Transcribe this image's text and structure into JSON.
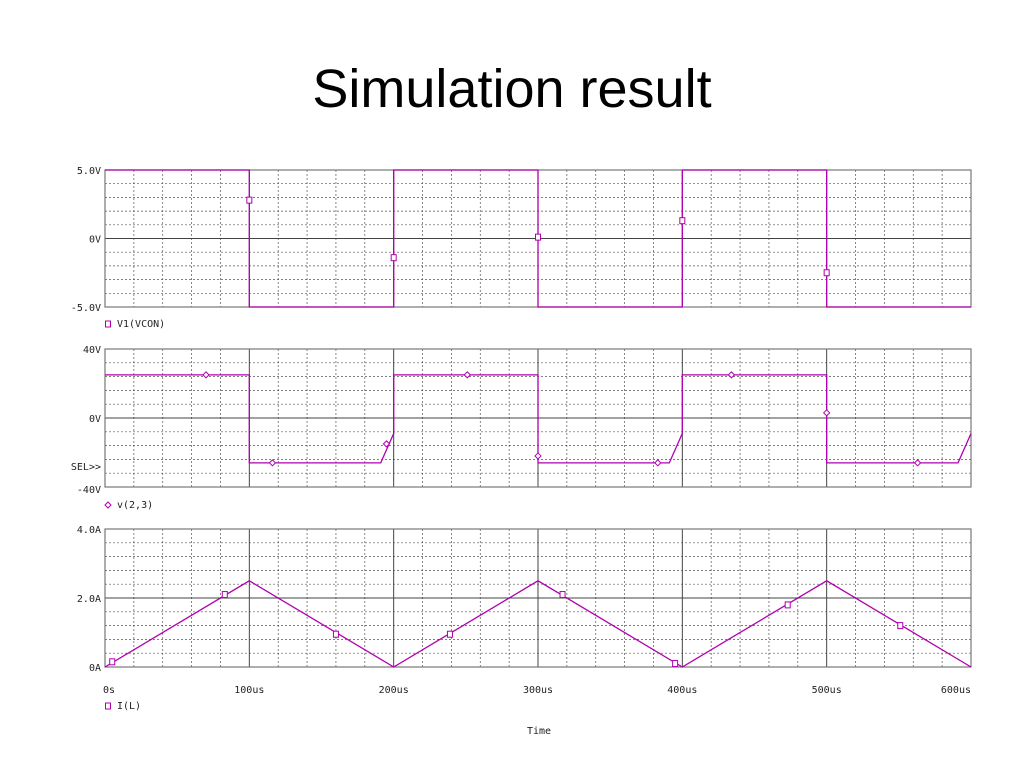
{
  "slide": {
    "title": "Simulation result"
  },
  "colors": {
    "trace": "#b000b0",
    "grid": "#555555",
    "axis": "#777777"
  },
  "chart_data": [
    {
      "type": "line",
      "ylim": [
        -5,
        5
      ],
      "yticks": [
        "5.0V",
        "0V",
        "-5.0V"
      ],
      "legend": "V1(VCON)",
      "legend_marker": "square",
      "series": [
        {
          "name": "V1(VCON)",
          "x": [
            0,
            100,
            100,
            200,
            200,
            300,
            300,
            400,
            400,
            500,
            500,
            600
          ],
          "y": [
            5,
            5,
            -5,
            -5,
            5,
            5,
            -5,
            -5,
            5,
            5,
            -5,
            -5
          ]
        }
      ],
      "markers": [
        [
          100,
          2.8
        ],
        [
          200,
          -1.4
        ],
        [
          300,
          0.1
        ],
        [
          400,
          1.3
        ],
        [
          500,
          -2.5
        ]
      ]
    },
    {
      "type": "line",
      "ylim": [
        -40,
        40
      ],
      "yticks": [
        "40V",
        "0V",
        "-40V"
      ],
      "selector": "SEL>>",
      "legend": "v(2,3)",
      "legend_marker": "diamond",
      "series": [
        {
          "name": "v(2,3)",
          "x": [
            0,
            100,
            100,
            191,
            200,
            200,
            300,
            300,
            391,
            400,
            400,
            500,
            500,
            591,
            600
          ],
          "y": [
            25,
            25,
            -26,
            -26,
            -9,
            25,
            25,
            -26,
            -26,
            -9,
            25,
            25,
            -26,
            -26,
            -9
          ]
        }
      ],
      "markers": [
        [
          70,
          25
        ],
        [
          116,
          -26
        ],
        [
          195,
          -15
        ],
        [
          251,
          25
        ],
        [
          300,
          -22
        ],
        [
          383,
          -26
        ],
        [
          434,
          25
        ],
        [
          500,
          3
        ],
        [
          563,
          -26
        ]
      ]
    },
    {
      "type": "line",
      "ylim": [
        0,
        4
      ],
      "yticks": [
        "4.0A",
        "2.0A",
        "0A"
      ],
      "legend": "I(L)",
      "legend_marker": "square",
      "series": [
        {
          "name": "I(L)",
          "x": [
            0,
            100,
            200,
            300,
            400,
            500,
            600
          ],
          "y": [
            0,
            2.5,
            0,
            2.5,
            0,
            2.5,
            0
          ]
        }
      ],
      "markers": [
        [
          5,
          0.15
        ],
        [
          83,
          2.1
        ],
        [
          160,
          0.95
        ],
        [
          239,
          0.95
        ],
        [
          317,
          2.1
        ],
        [
          395,
          0.1
        ],
        [
          473,
          1.8
        ],
        [
          551,
          1.2
        ]
      ]
    }
  ],
  "x_axis": {
    "ticks": [
      "0s",
      "100us",
      "200us",
      "300us",
      "400us",
      "500us",
      "600us"
    ],
    "values": [
      0,
      100,
      200,
      300,
      400,
      500,
      600
    ],
    "label": "Time"
  }
}
